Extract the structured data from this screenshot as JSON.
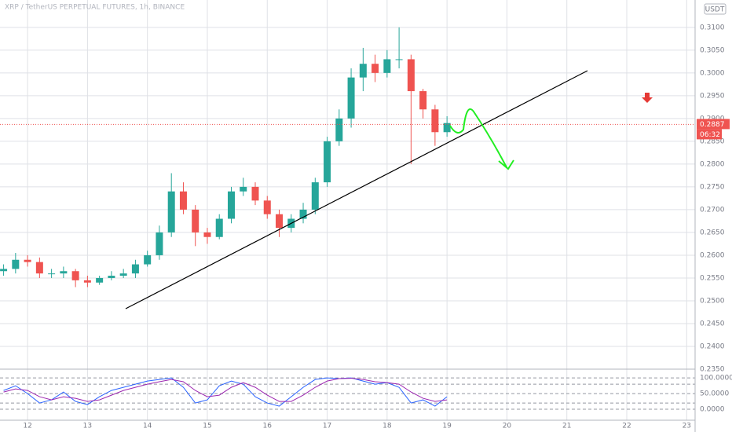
{
  "chart_data": [
    {
      "type": "candlestick",
      "title": "XRP / TetherUS PERPETUAL FUTURES, 1h, BINANCE",
      "currency": "USDT",
      "up_color": "#26a69a",
      "down_color": "#ef5350",
      "grid": true,
      "x": [
        11.6,
        11.8,
        12.0,
        12.2,
        12.4,
        12.6,
        12.8,
        13.0,
        13.2,
        13.4,
        13.6,
        13.8,
        14.0,
        14.2,
        14.4,
        14.6,
        14.8,
        15.0,
        15.2,
        15.4,
        15.6,
        15.8,
        16.0,
        16.2,
        16.4,
        16.6,
        16.8,
        17.0,
        17.2,
        17.4,
        17.6,
        17.8,
        18.0,
        18.2,
        18.4,
        18.6,
        18.8,
        19.0
      ],
      "open": [
        0.2565,
        0.257,
        0.259,
        0.2585,
        0.256,
        0.256,
        0.2565,
        0.2545,
        0.254,
        0.255,
        0.2555,
        0.256,
        0.258,
        0.26,
        0.265,
        0.274,
        0.27,
        0.265,
        0.264,
        0.268,
        0.274,
        0.275,
        0.272,
        0.269,
        0.266,
        0.268,
        0.27,
        0.276,
        0.285,
        0.29,
        0.299,
        0.302,
        0.3,
        0.303,
        0.303,
        0.296,
        0.292,
        0.287
      ],
      "high": [
        0.258,
        0.2605,
        0.26,
        0.2595,
        0.257,
        0.2575,
        0.257,
        0.2555,
        0.2555,
        0.2565,
        0.257,
        0.259,
        0.261,
        0.2665,
        0.278,
        0.276,
        0.271,
        0.266,
        0.269,
        0.275,
        0.277,
        0.276,
        0.273,
        0.27,
        0.269,
        0.2715,
        0.277,
        0.286,
        0.292,
        0.301,
        0.3055,
        0.304,
        0.305,
        0.31,
        0.304,
        0.2965,
        0.293,
        0.2905
      ],
      "low": [
        0.2555,
        0.256,
        0.2575,
        0.255,
        0.255,
        0.255,
        0.253,
        0.253,
        0.2535,
        0.2545,
        0.255,
        0.255,
        0.2575,
        0.259,
        0.264,
        0.269,
        0.262,
        0.2625,
        0.2635,
        0.267,
        0.273,
        0.271,
        0.268,
        0.264,
        0.265,
        0.267,
        0.269,
        0.275,
        0.284,
        0.288,
        0.296,
        0.298,
        0.299,
        0.301,
        0.28,
        0.29,
        0.284,
        0.286
      ],
      "close": [
        0.257,
        0.259,
        0.2585,
        0.256,
        0.256,
        0.2565,
        0.2545,
        0.254,
        0.255,
        0.2555,
        0.256,
        0.258,
        0.26,
        0.265,
        0.274,
        0.27,
        0.265,
        0.264,
        0.268,
        0.274,
        0.275,
        0.272,
        0.269,
        0.266,
        0.268,
        0.27,
        0.276,
        0.285,
        0.29,
        0.299,
        0.302,
        0.3,
        0.303,
        0.303,
        0.296,
        0.292,
        0.287,
        0.289
      ],
      "xlim": [
        11.54,
        23.14
      ],
      "xticks": [
        12,
        13,
        14,
        15,
        16,
        17,
        18,
        19,
        20,
        21,
        22,
        23
      ],
      "ylim": [
        0.235,
        0.316
      ],
      "yticks": [
        {
          "value": 0.235,
          "label": "0.2350"
        },
        {
          "value": 0.24,
          "label": "0.2400"
        },
        {
          "value": 0.245,
          "label": "0.2450"
        },
        {
          "value": 0.25,
          "label": "0.2500"
        },
        {
          "value": 0.255,
          "label": "0.2550"
        },
        {
          "value": 0.26,
          "label": "0.2600"
        },
        {
          "value": 0.265,
          "label": "0.2650"
        },
        {
          "value": 0.27,
          "label": "0.2700"
        },
        {
          "value": 0.275,
          "label": "0.2750"
        },
        {
          "value": 0.28,
          "label": "0.2800"
        },
        {
          "value": 0.285,
          "label": "0.2850"
        },
        {
          "value": 0.29,
          "label": "0.2900"
        },
        {
          "value": 0.295,
          "label": "0.2950"
        },
        {
          "value": 0.3,
          "label": "0.3000"
        },
        {
          "value": 0.305,
          "label": "0.3050"
        },
        {
          "value": 0.31,
          "label": "0.3100"
        }
      ],
      "last_price": 0.2887,
      "countdown": "06:32"
    },
    {
      "type": "line",
      "series": [
        {
          "name": "K",
          "color": "#2962ff",
          "values": [
            60,
            75,
            50,
            20,
            30,
            55,
            25,
            15,
            40,
            60,
            70,
            80,
            90,
            95,
            100,
            70,
            20,
            30,
            75,
            90,
            80,
            40,
            20,
            10,
            40,
            70,
            95,
            100,
            98,
            100,
            90,
            80,
            85,
            70,
            20,
            30,
            10,
            40
          ]
        },
        {
          "name": "D",
          "color": "#9c27b0",
          "values": [
            55,
            65,
            60,
            40,
            30,
            40,
            35,
            25,
            30,
            45,
            60,
            70,
            80,
            88,
            95,
            88,
            60,
            40,
            45,
            70,
            85,
            70,
            45,
            25,
            25,
            45,
            70,
            90,
            98,
            99,
            95,
            88,
            85,
            80,
            55,
            35,
            25,
            30
          ]
        }
      ],
      "ylim": [
        -35,
        128
      ],
      "yticks": [
        {
          "value": 0,
          "label": "0.0000"
        },
        {
          "value": 50,
          "label": "50.0000"
        },
        {
          "value": 100,
          "label": "100.0000"
        }
      ],
      "bands": [
        20,
        80
      ]
    }
  ]
}
